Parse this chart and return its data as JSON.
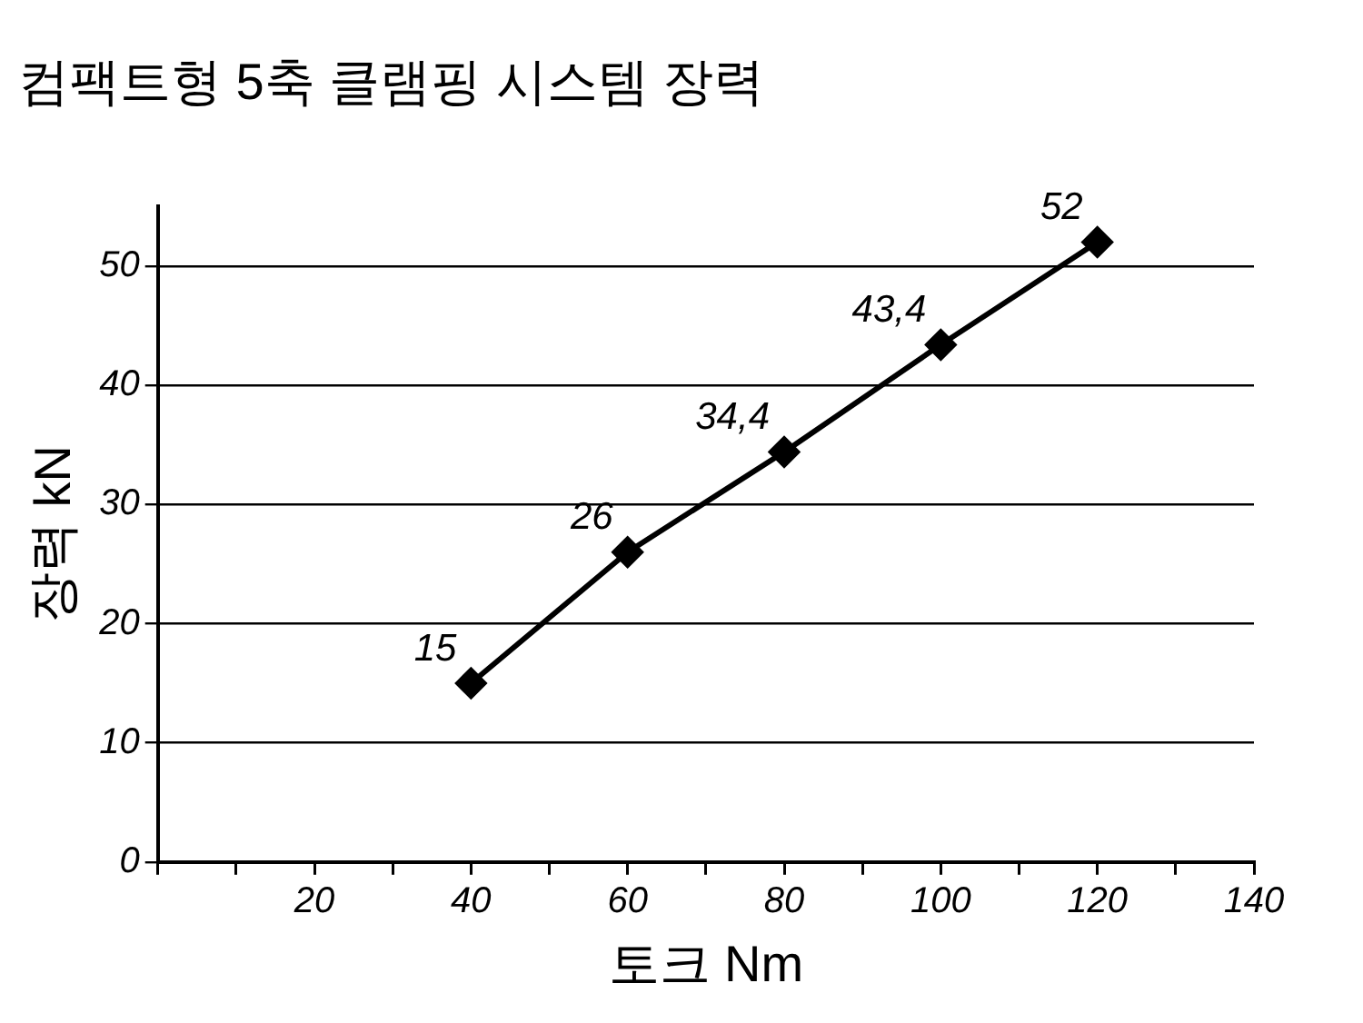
{
  "chart_data": {
    "type": "line",
    "title": "컴팩트형 5축 클램핑 시스템 장력",
    "xlabel": "토크 Nm",
    "ylabel": "장력 kN",
    "x": [
      40,
      60,
      80,
      100,
      120
    ],
    "series": [
      {
        "color": "#000000",
        "values": [
          15,
          26,
          34.4,
          43.4,
          52
        ],
        "value_labels": [
          "15",
          "26",
          "34,4",
          "43,4",
          "52"
        ]
      }
    ],
    "xlim": [
      0,
      140
    ],
    "xticks": [
      {
        "value": 0,
        "label": null
      },
      {
        "value": 10,
        "label": null
      },
      20,
      {
        "value": 30,
        "label": null
      },
      40,
      {
        "value": 50,
        "label": null
      },
      60,
      {
        "value": 70,
        "label": null
      },
      80,
      {
        "value": 90,
        "label": null
      },
      100,
      {
        "value": 110,
        "label": null
      },
      120,
      {
        "value": 130,
        "label": null
      },
      140
    ],
    "ylim": [
      0,
      55
    ],
    "yticks": [
      0,
      10,
      20,
      30,
      40,
      50
    ],
    "grid": "y",
    "legend": false,
    "marker": "diamond",
    "line_style": "solid"
  }
}
